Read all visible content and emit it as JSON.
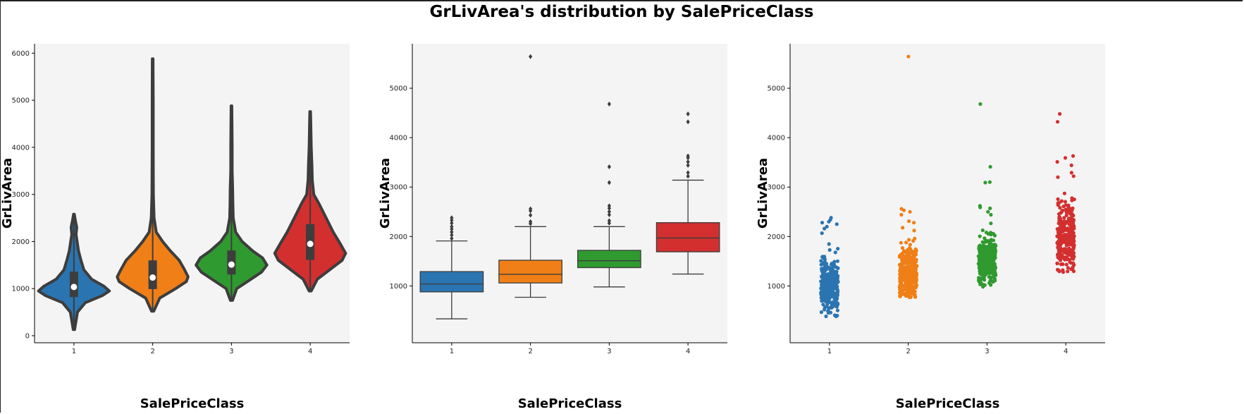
{
  "figure_title": "GrLivArea's distribution by SalePriceClass",
  "colors": {
    "c1": "#2a75b1",
    "c2": "#ef7f16",
    "c3": "#2f9a2f",
    "c4": "#d32f2f",
    "bg": "#f4f4f4",
    "outline": "#3d3d3d"
  },
  "chart_data": [
    {
      "type": "violin",
      "xlabel": "SalePriceClass",
      "ylabel": "GrLivArea",
      "categories": [
        "1",
        "2",
        "3",
        "4"
      ],
      "ylim": [
        -150,
        6200
      ],
      "yticks": [
        0,
        1000,
        2000,
        3000,
        4000,
        5000,
        6000
      ],
      "series": [
        {
          "category": "1",
          "min": 130,
          "max": 2580,
          "q1": 820,
          "median": 1035,
          "q3": 1360,
          "profile": [
            [
              130,
              0.02
            ],
            [
              500,
              0.1
            ],
            [
              700,
              0.32
            ],
            [
              850,
              0.8
            ],
            [
              950,
              1.0
            ],
            [
              1050,
              0.85
            ],
            [
              1200,
              0.5
            ],
            [
              1400,
              0.28
            ],
            [
              1600,
              0.2
            ],
            [
              1800,
              0.13
            ],
            [
              2000,
              0.09
            ],
            [
              2150,
              0.06
            ],
            [
              2300,
              0.08
            ],
            [
              2450,
              0.04
            ],
            [
              2580,
              0.01
            ]
          ]
        },
        {
          "category": "2",
          "min": 520,
          "max": 5880,
          "q1": 990,
          "median": 1235,
          "q3": 1600,
          "profile": [
            [
              520,
              0.03
            ],
            [
              800,
              0.2
            ],
            [
              1000,
              0.65
            ],
            [
              1150,
              0.95
            ],
            [
              1250,
              1.0
            ],
            [
              1400,
              0.9
            ],
            [
              1600,
              0.75
            ],
            [
              1800,
              0.5
            ],
            [
              2000,
              0.28
            ],
            [
              2200,
              0.1
            ],
            [
              2500,
              0.04
            ],
            [
              3000,
              0.02
            ],
            [
              4000,
              0.015
            ],
            [
              5000,
              0.015
            ],
            [
              5880,
              0.01
            ]
          ]
        },
        {
          "category": "3",
          "min": 750,
          "max": 4880,
          "q1": 1300,
          "median": 1510,
          "q3": 1810,
          "profile": [
            [
              750,
              0.03
            ],
            [
              1000,
              0.15
            ],
            [
              1200,
              0.55
            ],
            [
              1350,
              0.85
            ],
            [
              1500,
              1.0
            ],
            [
              1650,
              0.88
            ],
            [
              1800,
              0.6
            ],
            [
              2000,
              0.3
            ],
            [
              2200,
              0.12
            ],
            [
              2500,
              0.05
            ],
            [
              2800,
              0.04
            ],
            [
              3100,
              0.035
            ],
            [
              3500,
              0.02
            ],
            [
              4000,
              0.02
            ],
            [
              4880,
              0.01
            ]
          ]
        },
        {
          "category": "4",
          "min": 950,
          "max": 4760,
          "q1": 1610,
          "median": 1950,
          "q3": 2370,
          "profile": [
            [
              950,
              0.03
            ],
            [
              1200,
              0.2
            ],
            [
              1400,
              0.55
            ],
            [
              1600,
              0.9
            ],
            [
              1750,
              1.0
            ],
            [
              1950,
              0.85
            ],
            [
              2200,
              0.65
            ],
            [
              2500,
              0.45
            ],
            [
              2800,
              0.25
            ],
            [
              3000,
              0.1
            ],
            [
              3300,
              0.06
            ],
            [
              3600,
              0.05
            ],
            [
              4000,
              0.03
            ],
            [
              4400,
              0.02
            ],
            [
              4760,
              0.01
            ]
          ]
        }
      ]
    },
    {
      "type": "box",
      "xlabel": "SalePriceClass",
      "ylabel": "GrLivArea",
      "categories": [
        "1",
        "2",
        "3",
        "4"
      ],
      "ylim": [
        -150,
        5900
      ],
      "yticks": [
        1000,
        2000,
        3000,
        4000,
        5000
      ],
      "series": [
        {
          "category": "1",
          "whisker_low": 334,
          "q1": 880,
          "median": 1040,
          "q3": 1290,
          "whisker_high": 1910,
          "outliers": [
            1960,
            2030,
            2090,
            2150,
            2200,
            2270,
            2330,
            2380
          ]
        },
        {
          "category": "2",
          "whisker_low": 770,
          "q1": 1060,
          "median": 1235,
          "q3": 1520,
          "whisker_high": 2200,
          "outliers": [
            2260,
            2300,
            2430,
            2520,
            2560,
            5640
          ]
        },
        {
          "category": "3",
          "whisker_low": 980,
          "q1": 1370,
          "median": 1510,
          "q3": 1720,
          "whisker_high": 2200,
          "outliers": [
            2270,
            2320,
            2440,
            2500,
            2570,
            2620,
            3090,
            3410,
            4680
          ]
        },
        {
          "category": "4",
          "whisker_low": 1240,
          "q1": 1690,
          "median": 1970,
          "q3": 2280,
          "whisker_high": 3140,
          "outliers": [
            3220,
            3290,
            3440,
            3510,
            3590,
            3630,
            4320,
            4480
          ]
        }
      ]
    },
    {
      "type": "scatter",
      "xlabel": "SalePriceClass",
      "ylabel": "GrLivArea",
      "categories": [
        "1",
        "2",
        "3",
        "4"
      ],
      "ylim": [
        -150,
        5900
      ],
      "yticks": [
        1000,
        2000,
        3000,
        4000,
        5000
      ],
      "series": [
        {
          "category": "1",
          "low": 334,
          "center": 1040,
          "spread": 270,
          "high": 2380,
          "n": 330,
          "extremes": [
            2380,
            2340,
            2300,
            2280,
            2250,
            2200,
            2160,
            400,
            460,
            520
          ]
        },
        {
          "category": "2",
          "low": 770,
          "center": 1260,
          "spread": 280,
          "high": 2560,
          "n": 330,
          "extremes": [
            2560,
            2530,
            2500,
            2440,
            2310,
            2280,
            5640
          ]
        },
        {
          "category": "3",
          "low": 980,
          "center": 1540,
          "spread": 230,
          "high": 2620,
          "n": 330,
          "extremes": [
            2620,
            2590,
            2570,
            2500,
            2440,
            3090,
            3100,
            3410,
            4680
          ]
        },
        {
          "category": "4",
          "low": 1240,
          "center": 1980,
          "spread": 340,
          "high": 3140,
          "n": 300,
          "extremes": [
            3220,
            3290,
            3440,
            3510,
            3590,
            3630,
            3200,
            4320,
            4480
          ]
        }
      ]
    }
  ]
}
